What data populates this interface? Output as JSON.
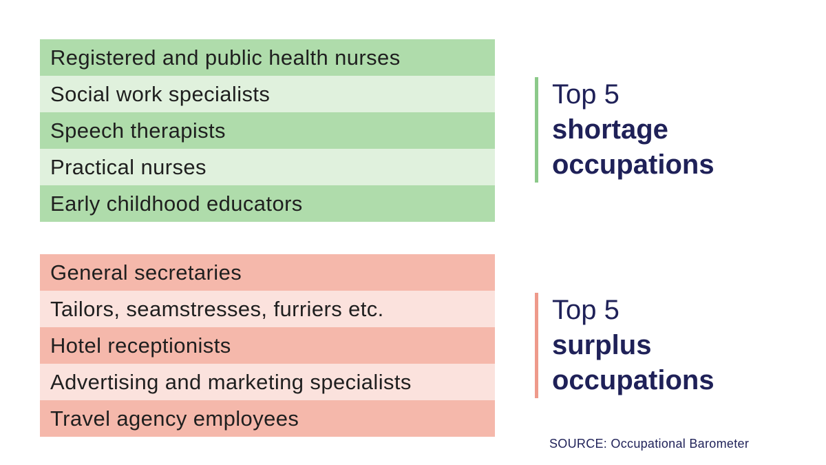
{
  "shortage": {
    "heading_line1": "Top 5",
    "heading_line2": "shortage",
    "heading_line3": "occupations",
    "accent_color": "#8cc98a",
    "items": [
      "Registered and public health nurses",
      "Social work specialists",
      "Speech therapists",
      "Practical nurses",
      "Early childhood educators"
    ]
  },
  "surplus": {
    "heading_line1": "Top 5",
    "heading_line2": "surplus",
    "heading_line3": "occupations",
    "accent_color": "#ee9a8b",
    "items": [
      "General secretaries",
      "Tailors, seamstresses, furriers etc.",
      "Hotel receptionists",
      "Advertising and marketing specialists",
      "Travel agency employees"
    ]
  },
  "source": "SOURCE: Occupational Barometer"
}
